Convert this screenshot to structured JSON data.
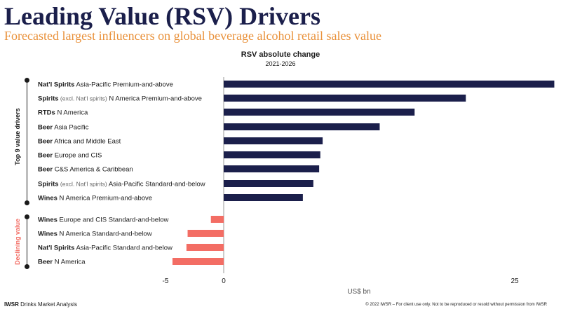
{
  "header": {
    "title": "Leading Value (RSV) Drivers",
    "subtitle": "Forecasted largest influencers on global beverage alcohol retail sales value"
  },
  "groups": {
    "top_label": "Top 9 value drivers",
    "declining_label": "Declining value"
  },
  "footer": {
    "brand": "IWSR",
    "brand_rest": " Drinks Market Analysis",
    "copyright": "© 2022 IWSR – For client use only. Not to be reproduced or resold without permission from IWSR"
  },
  "colors": {
    "positive": "#1b1f4b",
    "negative": "#f36d64",
    "title": "#1b1f4b",
    "subtitle": "#e9913a",
    "declining_label": "#f36d64"
  },
  "chart_data": {
    "type": "bar",
    "orientation": "horizontal",
    "title": "RSV absolute change",
    "subtitle": "2021-2026",
    "xlabel": "US$ bn",
    "xlim": [
      -5,
      28
    ],
    "xticks": [
      -5,
      0,
      25
    ],
    "categories": [
      {
        "bold": "Nat'l Spirits",
        "light": "",
        "rest": " Asia-Pacific Premium-and-above"
      },
      {
        "bold": "Spirits",
        "light": " (excl. Nat'l spirits)",
        "rest": " N America Premium-and-above"
      },
      {
        "bold": "RTDs",
        "light": "",
        "rest": " N America"
      },
      {
        "bold": "Beer",
        "light": "",
        "rest": " Asia Pacific"
      },
      {
        "bold": "Beer",
        "light": "",
        "rest": " Africa and Middle East"
      },
      {
        "bold": "Beer",
        "light": "",
        "rest": " Europe and CIS"
      },
      {
        "bold": "Beer",
        "light": "",
        "rest": " C&S America & Caribbean"
      },
      {
        "bold": "Spirits",
        "light": " (excl. Nat'l spirits)",
        "rest": " Asia-Pacific Standard-and-below"
      },
      {
        "bold": "Wines",
        "light": "",
        "rest": " N America Premium-and-above"
      },
      {
        "bold": "Wines",
        "light": "",
        "rest": " Europe and CIS Standard-and-below"
      },
      {
        "bold": "Wines",
        "light": "",
        "rest": " N America Standard-and-below"
      },
      {
        "bold": "Nat'l Spirits",
        "light": "",
        "rest": " Asia-Pacific Standard and-below"
      },
      {
        "bold": "Beer",
        "light": "",
        "rest": " N America"
      }
    ],
    "values": [
      28.4,
      20.8,
      16.4,
      13.4,
      8.5,
      8.3,
      8.2,
      7.7,
      6.8,
      -1.1,
      -3.1,
      -3.2,
      -4.4
    ]
  }
}
